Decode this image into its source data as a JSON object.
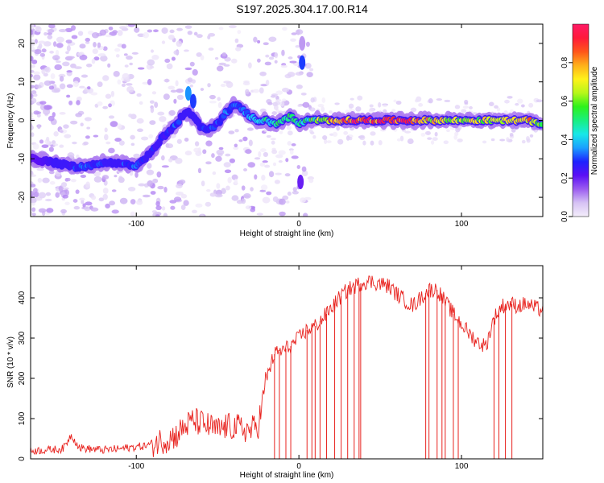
{
  "title": "S197.2025.304.17.00.R14",
  "chart_data": [
    {
      "type": "heatmap",
      "title": "S197.2025.304.17.00.R14",
      "xlabel": "Height of straight line (km)",
      "ylabel": "Frequency (Hz)",
      "xlim": [
        -165,
        150
      ],
      "ylim": [
        -25,
        25
      ],
      "x_ticks": [
        -100,
        0,
        100
      ],
      "y_ticks": [
        -20,
        -10,
        0,
        10,
        20
      ],
      "colorbar": {
        "label": "Normalized spectral amplitude",
        "range": [
          0,
          1
        ],
        "ticks": [
          0.0,
          0.2,
          0.4,
          0.6,
          0.8
        ],
        "colormap": [
          "#f4eefb",
          "#d6c2f4",
          "#9b5cf0",
          "#5b0ff5",
          "#1e22ff",
          "#1aa0ff",
          "#17e8e8",
          "#18ef80",
          "#2ef21b",
          "#b7f71a",
          "#fff21a",
          "#ffb01a",
          "#ff551a",
          "#ff1a3a",
          "#ff1a66"
        ]
      },
      "ridge": {
        "x": [
          -165,
          -150,
          -140,
          -130,
          -120,
          -110,
          -100,
          -95,
          -90,
          -85,
          -80,
          -75,
          -72,
          -68,
          -65,
          -60,
          -55,
          -50,
          -45,
          -40,
          -35,
          -30,
          -25,
          -20,
          -15,
          -10,
          -5,
          0,
          5,
          10,
          20,
          40,
          60,
          80,
          100,
          120,
          140,
          150
        ],
        "freq": [
          -10,
          -11,
          -12,
          -12,
          -11,
          -11,
          -12,
          -10,
          -8,
          -5,
          -3,
          -1,
          1,
          2,
          1,
          -2,
          -2,
          -1,
          2,
          4,
          3,
          1,
          0,
          0,
          -1,
          0,
          1,
          -1,
          0,
          0,
          0,
          0,
          0,
          0,
          0,
          0,
          0,
          -1
        ],
        "amplitude": [
          0.2,
          0.25,
          0.3,
          0.35,
          0.3,
          0.3,
          0.35,
          0.3,
          0.3,
          0.32,
          0.3,
          0.35,
          0.3,
          0.3,
          0.3,
          0.3,
          0.32,
          0.35,
          0.35,
          0.35,
          0.35,
          0.4,
          0.45,
          0.5,
          0.5,
          0.55,
          0.55,
          0.5,
          0.55,
          0.6,
          0.9,
          1.0,
          1.0,
          0.8,
          0.7,
          0.75,
          0.9,
          0.6
        ]
      },
      "blobs": [
        {
          "x": 2,
          "freq": 15,
          "amplitude": 0.3
        },
        {
          "x": 2,
          "freq": 20,
          "amplitude": 0.1
        },
        {
          "x": 1,
          "freq": -16,
          "amplitude": 0.2
        },
        {
          "x": -68,
          "freq": 7,
          "amplitude": 0.35
        },
        {
          "x": -65,
          "freq": 5,
          "amplitude": 0.3
        }
      ]
    },
    {
      "type": "line",
      "xlabel": "Height of straight line (km)",
      "ylabel": "SNR (10 * v/v)",
      "xlim": [
        -165,
        150
      ],
      "ylim": [
        0,
        480
      ],
      "x_ticks": [
        -100,
        0,
        100
      ],
      "y_ticks": [
        0,
        100,
        200,
        300,
        400
      ],
      "color": "#e8231f",
      "series": [
        {
          "name": "SNR",
          "x": [
            -165,
            -155,
            -145,
            -140,
            -135,
            -130,
            -120,
            -110,
            -100,
            -95,
            -90,
            -85,
            -80,
            -75,
            -70,
            -65,
            -60,
            -55,
            -50,
            -45,
            -40,
            -35,
            -30,
            -25,
            -22,
            -20,
            -15,
            -10,
            -5,
            0,
            5,
            10,
            15,
            20,
            25,
            30,
            35,
            40,
            45,
            50,
            55,
            60,
            65,
            70,
            75,
            80,
            85,
            90,
            95,
            100,
            105,
            110,
            115,
            120,
            125,
            130,
            135,
            140,
            145,
            150
          ],
          "y": [
            20,
            22,
            25,
            60,
            28,
            25,
            22,
            25,
            30,
            32,
            38,
            45,
            50,
            60,
            80,
            95,
            88,
            80,
            70,
            80,
            80,
            75,
            70,
            85,
            150,
            200,
            260,
            270,
            280,
            300,
            320,
            330,
            350,
            375,
            400,
            420,
            430,
            440,
            440,
            435,
            430,
            410,
            395,
            380,
            400,
            420,
            420,
            390,
            360,
            335,
            310,
            290,
            280,
            350,
            380,
            385,
            380,
            385,
            375,
            370
          ]
        }
      ],
      "dropouts": [
        -15,
        -12,
        -8,
        -5,
        5,
        8,
        10,
        13,
        17,
        22,
        26,
        30,
        34,
        37,
        38,
        78,
        80,
        85,
        88,
        90,
        95,
        98,
        120,
        123,
        127,
        131
      ]
    }
  ]
}
